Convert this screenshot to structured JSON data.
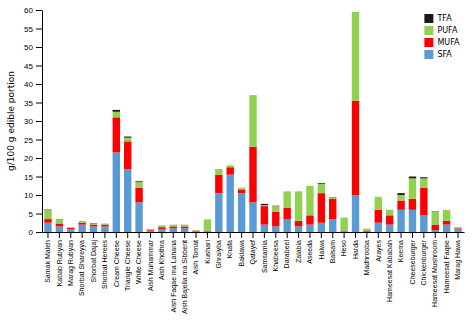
{
  "chart_data": {
    "type": "bar",
    "stacked": true,
    "categories": [
      "Samak Maleh",
      "Kabab Rubyan",
      "Marag Rubyan",
      "Shorbat Shareyya",
      "Shorbat Dajaj",
      "Shorbat Herees",
      "Cream Cheese",
      "Triangle Cheese",
      "White Cheese",
      "Aish Muhammar",
      "Aish Khothra",
      "Aish Faqae ma Lahana",
      "Aish Bajella ma Sibbent",
      "Aish Tomat",
      "Kushari",
      "Ghraiyba",
      "Knafa",
      "Baklawa",
      "Qatayef",
      "Samsamia",
      "Khabeesa",
      "Darabeel",
      "Zalabia",
      "Aseeda",
      "Halwa",
      "Balsam",
      "Heso",
      "Harda",
      "Madhrooba",
      "Arayes",
      "Hameesat Kababah",
      "Keema",
      "Cheeseburger",
      "Chickenburger",
      "Hameesat Mushroom",
      "Hameesat Faqse",
      "Marag Hawa"
    ],
    "series": [
      {
        "name": "SFA",
        "color": "#5B9BD5",
        "values": [
          2.5,
          1.5,
          0.8,
          2.0,
          1.5,
          1.5,
          21.5,
          17.0,
          8.0,
          0.3,
          0.8,
          1.0,
          1.0,
          0.3,
          0.3,
          10.5,
          15.5,
          10.5,
          8.0,
          2.0,
          1.5,
          3.5,
          1.5,
          2.0,
          2.5,
          3.5,
          0.3,
          10.0,
          0.1,
          2.5,
          2.0,
          6.0,
          6.0,
          4.5,
          0.5,
          2.0,
          0.7
        ]
      },
      {
        "name": "MUFA",
        "color": "#FF0000",
        "values": [
          1.0,
          0.8,
          0.3,
          0.5,
          0.5,
          0.5,
          9.5,
          7.5,
          4.0,
          0.2,
          0.5,
          0.5,
          0.5,
          0.1,
          0.1,
          5.0,
          2.0,
          1.0,
          15.0,
          5.0,
          4.0,
          3.0,
          1.5,
          2.5,
          8.0,
          5.5,
          0.1,
          25.5,
          0.3,
          3.5,
          2.5,
          2.5,
          3.0,
          7.5,
          1.5,
          1.0,
          0.3
        ]
      },
      {
        "name": "PUFA",
        "color": "#92D050",
        "values": [
          2.5,
          1.0,
          0.2,
          0.5,
          0.3,
          0.3,
          1.5,
          1.0,
          1.5,
          0.3,
          0.5,
          0.5,
          0.5,
          0.1,
          3.0,
          1.5,
          0.5,
          0.5,
          14.0,
          0.3,
          1.5,
          4.5,
          8.0,
          8.0,
          2.5,
          0.3,
          3.5,
          24.0,
          0.5,
          3.5,
          1.5,
          1.5,
          5.5,
          2.5,
          3.5,
          3.0,
          0.3
        ]
      },
      {
        "name": "TFA",
        "color": "#1a1a1a",
        "values": [
          0.1,
          0.1,
          0.0,
          0.0,
          0.1,
          0.0,
          0.5,
          0.3,
          0.2,
          0.0,
          0.0,
          0.0,
          0.0,
          0.0,
          0.0,
          0.0,
          0.0,
          0.0,
          0.0,
          0.3,
          0.1,
          0.0,
          0.0,
          0.0,
          0.2,
          0.1,
          0.0,
          0.0,
          0.0,
          0.0,
          0.0,
          0.5,
          0.5,
          0.3,
          0.1,
          0.0,
          0.0
        ]
      }
    ],
    "ylabel": "g/100 g edible portion",
    "ylim": [
      0,
      60
    ],
    "yticks": [
      0,
      5,
      10,
      15,
      20,
      25,
      30,
      35,
      40,
      45,
      50,
      55,
      60
    ],
    "legend": "upper-right"
  }
}
